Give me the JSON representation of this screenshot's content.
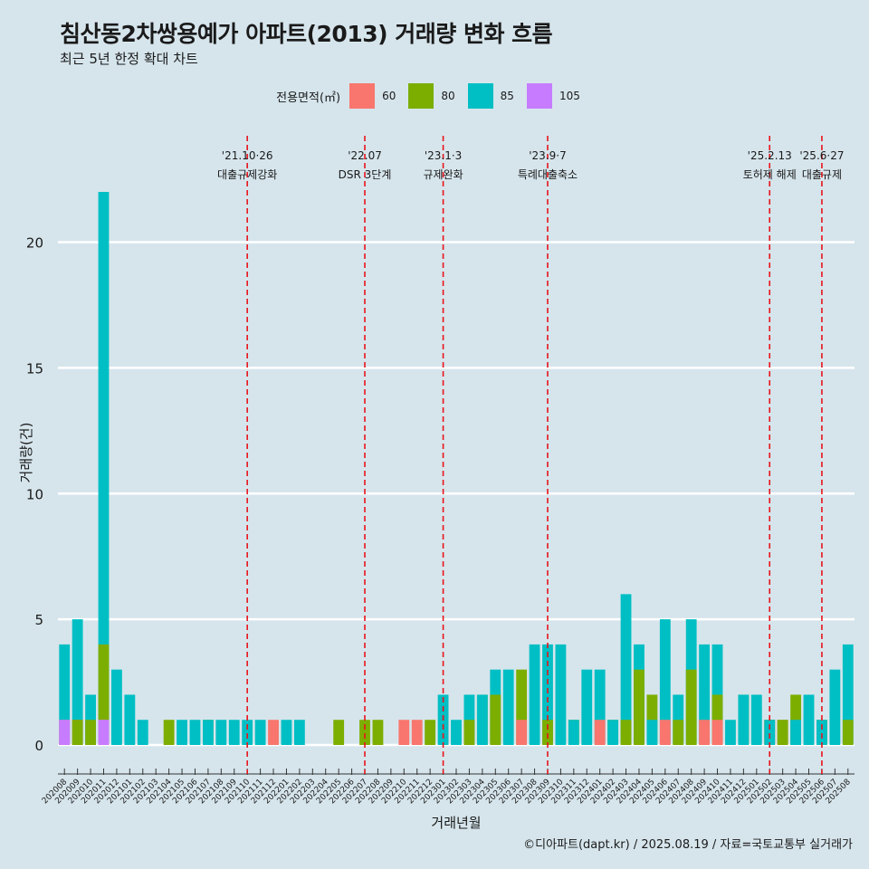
{
  "title": "침산동2차쌍용예가 아파트(2013) 거래량 변화 흐름",
  "subtitle": "최근 5년 한정 확대 차트",
  "legend": {
    "title": "전용면적(㎡)",
    "items": [
      {
        "label": "60",
        "color": "#f8766d"
      },
      {
        "label": "80",
        "color": "#7cae00"
      },
      {
        "label": "85",
        "color": "#00bfc4"
      },
      {
        "label": "105",
        "color": "#c77cff"
      }
    ]
  },
  "footer": "©디아파트(dapt.kr) / 2025.08.19 / 자료=국토교통부 실거래가",
  "chart_data": {
    "type": "bar",
    "stacked": false,
    "xlabel": "거래년월",
    "ylabel": "거래량(건)",
    "ylim": [
      0,
      22
    ],
    "yticks": [
      0,
      5,
      10,
      15,
      20
    ],
    "grid": true,
    "legend_position": "top",
    "categories": [
      "202008",
      "202009",
      "202010",
      "202011",
      "202012",
      "202101",
      "202102",
      "202103",
      "202104",
      "202105",
      "202106",
      "202107",
      "202108",
      "202109",
      "202110",
      "202111",
      "202112",
      "202201",
      "202202",
      "202203",
      "202204",
      "202205",
      "202206",
      "202207",
      "202208",
      "202209",
      "202210",
      "202211",
      "202212",
      "202301",
      "202302",
      "202303",
      "202304",
      "202305",
      "202306",
      "202307",
      "202308",
      "202309",
      "202310",
      "202311",
      "202312",
      "202401",
      "202402",
      "202403",
      "202404",
      "202405",
      "202406",
      "202407",
      "202408",
      "202409",
      "202410",
      "202411",
      "202412",
      "202501",
      "202502",
      "202503",
      "202504",
      "202505",
      "202506",
      "202507",
      "202508"
    ],
    "series": [
      {
        "name": "60",
        "color": "#f8766d",
        "values": [
          1,
          1,
          0,
          1,
          0,
          0,
          0,
          0,
          0,
          0,
          0,
          0,
          0,
          0,
          0,
          0,
          1,
          0,
          0,
          0,
          0,
          0,
          0,
          0,
          0,
          0,
          1,
          1,
          0,
          0,
          0,
          0,
          0,
          0,
          0,
          1,
          0,
          0,
          0,
          0,
          0,
          1,
          0,
          0,
          0,
          0,
          1,
          0,
          0,
          1,
          1,
          0,
          0,
          0,
          1,
          1,
          0,
          0,
          0,
          0,
          0
        ]
      },
      {
        "name": "80",
        "color": "#7cae00",
        "values": [
          0,
          1,
          1,
          4,
          0,
          0,
          0,
          0,
          1,
          0,
          0,
          1,
          0,
          0,
          0,
          0,
          0,
          0,
          0,
          0,
          0,
          1,
          0,
          1,
          1,
          0,
          0,
          0,
          1,
          0,
          0,
          1,
          2,
          2,
          0,
          3,
          0,
          1,
          0,
          1,
          0,
          0,
          1,
          1,
          3,
          2,
          0,
          1,
          3,
          0,
          2,
          0,
          2,
          0,
          1,
          1,
          2,
          0,
          1,
          0,
          1
        ]
      },
      {
        "name": "85",
        "color": "#00bfc4",
        "values": [
          4,
          5,
          2,
          22,
          3,
          2,
          1,
          0,
          0,
          1,
          1,
          1,
          1,
          1,
          1,
          1,
          0,
          1,
          1,
          0,
          0,
          0,
          0,
          0,
          0,
          0,
          0,
          0,
          0,
          2,
          1,
          2,
          2,
          3,
          3,
          0,
          4,
          4,
          4,
          1,
          3,
          3,
          1,
          6,
          4,
          1,
          5,
          2,
          5,
          4,
          4,
          1,
          2,
          2,
          1,
          0,
          1,
          2,
          1,
          3,
          4
        ]
      },
      {
        "name": "105",
        "color": "#c77cff",
        "values": [
          1,
          0,
          0,
          1,
          0,
          0,
          0,
          0,
          0,
          0,
          0,
          0,
          0,
          0,
          0,
          0,
          0,
          0,
          0,
          0,
          0,
          0,
          0,
          0,
          0,
          0,
          0,
          0,
          0,
          0,
          0,
          0,
          0,
          0,
          0,
          0,
          0,
          0,
          0,
          0,
          0,
          0,
          0,
          0,
          0,
          0,
          0,
          0,
          0,
          0,
          0,
          0,
          0,
          0,
          0,
          0,
          0,
          0,
          0,
          0,
          0
        ]
      }
    ],
    "events": [
      {
        "x": "202110",
        "date": "'21.10·26",
        "label": "대출규제강화"
      },
      {
        "x": "202207",
        "date": "'22.07",
        "label": "DSR 3단계"
      },
      {
        "x": "202301",
        "date": "'23.1·3",
        "label": "규제완화"
      },
      {
        "x": "202309",
        "date": "'23.9·7",
        "label": "특례대출축소"
      },
      {
        "x": "202502",
        "date": "'25.2.13",
        "label": "토허제 해제"
      },
      {
        "x": "202506",
        "date": "'25.6·27",
        "label": "대출규제"
      }
    ]
  }
}
